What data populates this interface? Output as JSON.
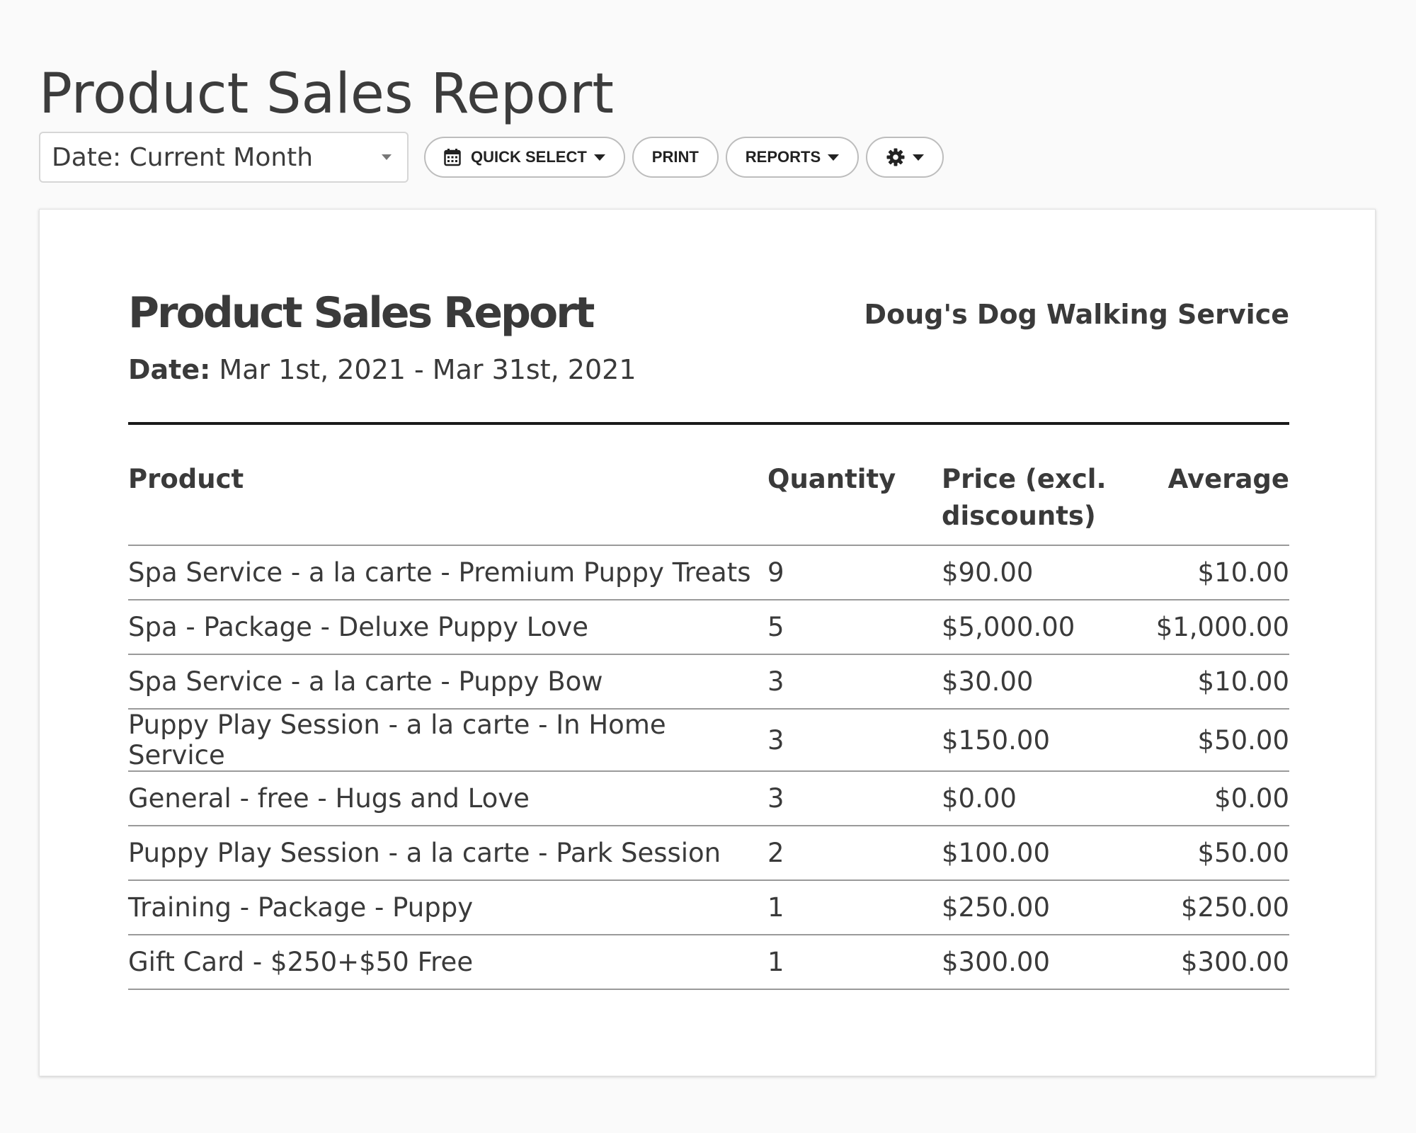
{
  "page": {
    "title": "Product Sales Report"
  },
  "toolbar": {
    "date_select": {
      "value": "Date: Current Month"
    },
    "quick_select_label": "QUICK SELECT",
    "print_label": "PRINT",
    "reports_label": "REPORTS",
    "settings_icon": "gear-icon"
  },
  "report": {
    "title": "Product Sales Report",
    "date_label": "Date:",
    "date_value": "Mar 1st, 2021 - Mar 31st, 2021",
    "company": "Doug's Dog Walking Service",
    "columns": {
      "product": "Product",
      "quantity": "Quantity",
      "price": "Price (excl. discounts)",
      "average": "Average"
    },
    "rows": [
      {
        "product": "Spa Service - a la carte - Premium Puppy Treats",
        "quantity": "9",
        "price": "$90.00",
        "average": "$10.00"
      },
      {
        "product": "Spa - Package - Deluxe Puppy Love",
        "quantity": "5",
        "price": "$5,000.00",
        "average": "$1,000.00"
      },
      {
        "product": "Spa Service - a la carte - Puppy Bow",
        "quantity": "3",
        "price": "$30.00",
        "average": "$10.00"
      },
      {
        "product": "Puppy Play Session - a la carte - In Home Service",
        "quantity": "3",
        "price": "$150.00",
        "average": "$50.00"
      },
      {
        "product": "General - free - Hugs and Love",
        "quantity": "3",
        "price": "$0.00",
        "average": "$0.00"
      },
      {
        "product": "Puppy Play Session - a la carte - Park Session",
        "quantity": "2",
        "price": "$100.00",
        "average": "$50.00"
      },
      {
        "product": "Training - Package - Puppy",
        "quantity": "1",
        "price": "$250.00",
        "average": "$250.00"
      },
      {
        "product": "Gift Card - $250+$50 Free",
        "quantity": "1",
        "price": "$300.00",
        "average": "$300.00"
      }
    ]
  }
}
